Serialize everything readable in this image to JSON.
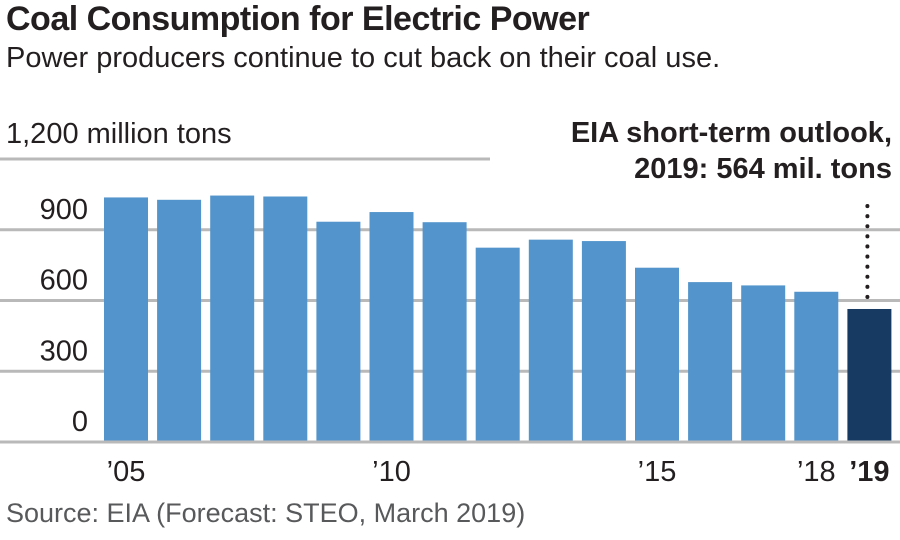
{
  "chart_data": {
    "type": "bar",
    "title": "Coal Consumption for Electric Power",
    "subtitle": "Power producers continue to cut back on their coal use.",
    "ylabel": "1,200 million tons",
    "xlabel": "",
    "ylim": [
      0,
      1200
    ],
    "yticks": [
      0,
      300,
      600,
      900,
      1200
    ],
    "ytick_labels": [
      "0",
      "300",
      "600",
      "900",
      "1,200 million tons"
    ],
    "grid": true,
    "categories": [
      "2005",
      "2006",
      "2007",
      "2008",
      "2009",
      "2010",
      "2011",
      "2012",
      "2013",
      "2014",
      "2015",
      "2016",
      "2017",
      "2018",
      "2019"
    ],
    "values": [
      1037,
      1027,
      1045,
      1041,
      934,
      975,
      932,
      824,
      858,
      852,
      739,
      678,
      664,
      637,
      564
    ],
    "forecast_index": 14,
    "xtick_labels": [
      {
        "index": 0,
        "label": "’05"
      },
      {
        "index": 5,
        "label": "’10"
      },
      {
        "index": 10,
        "label": "’15"
      },
      {
        "index": 13,
        "label": "’18"
      },
      {
        "index": 14,
        "label": "’19",
        "bold": true
      }
    ],
    "annotation": {
      "line1": "EIA short-term outlook,",
      "line2": "2019: 564 mil. tons"
    },
    "colors": {
      "bar": "#5294cb",
      "forecast_bar": "#173a63",
      "grid": "#b9b9b9",
      "text": "#231f20"
    },
    "source": "Source: EIA (Forecast: STEO, March 2019)"
  }
}
